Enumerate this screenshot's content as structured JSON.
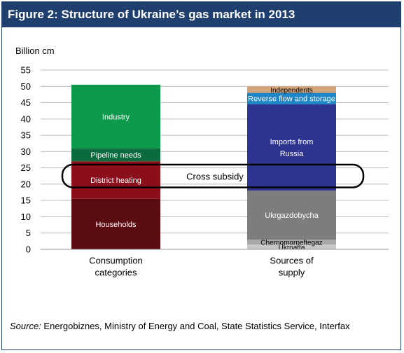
{
  "figure_title": "Figure 2: Structure of Ukraine’s gas market in 2013",
  "unit_label": "Billion cm",
  "source_prefix": "Source:",
  "source_text": " Energobiznes, Ministry of Energy and Coal, State Statistics Service, Interfax",
  "annotation": {
    "label": "Cross subsidy",
    "y_range": [
      19,
      26
    ]
  },
  "chart_data": {
    "type": "bar",
    "stacked": true,
    "title": "Figure 2: Structure of Ukraine’s gas market in 2013",
    "ylabel": "Billion cm",
    "ylim": [
      0,
      55
    ],
    "yticks": [
      0,
      5,
      10,
      15,
      20,
      25,
      30,
      35,
      40,
      45,
      50,
      55
    ],
    "grid": true,
    "categories": [
      "Consumption\ncategories",
      "Sources of\nsupply"
    ],
    "stacks": [
      {
        "category": "Consumption\ncategories",
        "segments": [
          {
            "name": "Households",
            "value": 15.5,
            "color": "#5a0c10",
            "text_color": "#ffffff"
          },
          {
            "name": "District heating",
            "value": 11.5,
            "color": "#8b0f1a",
            "text_color": "#ffffff"
          },
          {
            "name": "Pipeline needs",
            "value": 4.0,
            "color": "#0b6b3e",
            "text_color": "#ffffff"
          },
          {
            "name": "Industry",
            "value": 19.5,
            "color": "#0e9a4c",
            "text_color": "#ffffff"
          }
        ]
      },
      {
        "category": "Sources of\nsupply",
        "segments": [
          {
            "name": "Ukrnafta",
            "value": 1.5,
            "color": "#c8c8c8",
            "text_color": "#000000"
          },
          {
            "name": "Chernomorneftegaz",
            "value": 1.5,
            "color": "#a8a8a8",
            "text_color": "#000000"
          },
          {
            "name": "Ukrgazdobycha",
            "value": 15.0,
            "color": "#7d7d7d",
            "text_color": "#ffffff"
          },
          {
            "name": "Imports from\nRussia",
            "value": 26.5,
            "color": "#2e3591",
            "text_color": "#ffffff"
          },
          {
            "name": "Reverse flow and storage",
            "value": 3.5,
            "color": "#1d84c6",
            "text_color": "#ffffff"
          },
          {
            "name": "Independents",
            "value": 2.0,
            "color": "#d3a47a",
            "text_color": "#000000"
          }
        ]
      }
    ]
  }
}
